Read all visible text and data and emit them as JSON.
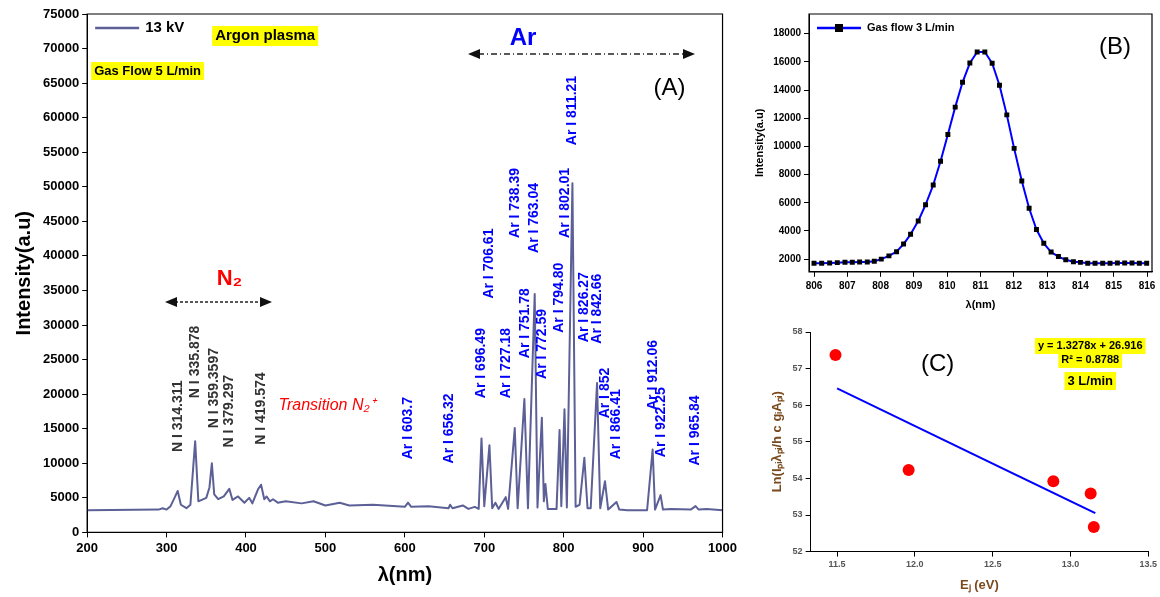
{
  "chart_data": [
    {
      "type": "line",
      "xlabel": "λ(nm)",
      "ylabel": "Intensity(a.u)",
      "xlim": [
        200,
        1000
      ],
      "ylim": [
        0,
        75000
      ],
      "xticks": [
        200,
        300,
        400,
        500,
        600,
        700,
        800,
        900,
        1000
      ],
      "yticks": [
        0,
        5000,
        10000,
        15000,
        20000,
        25000,
        30000,
        35000,
        40000,
        45000,
        50000,
        55000,
        60000,
        65000,
        70000,
        75000
      ],
      "legend": "top left",
      "marker": "none",
      "series": [
        {
          "name": "13 kV",
          "color": "#5c6096",
          "x": [
            200,
            290,
            295,
            300,
            305,
            310,
            314,
            318,
            325,
            330,
            336,
            340,
            350,
            354,
            357,
            360,
            365,
            372,
            379,
            383,
            390,
            398,
            404,
            408,
            415,
            419,
            423,
            426,
            430,
            434,
            440,
            450,
            470,
            485,
            500,
            518,
            530,
            560,
            590,
            600,
            604,
            608,
            630,
            655,
            657,
            660,
            673,
            680,
            688,
            693,
            696.5,
            700,
            706.5,
            710,
            714,
            718,
            727,
            730,
            738.4,
            742,
            750.5,
            755,
            763.5,
            767,
            772.5,
            775,
            777,
            780,
            791,
            794.8,
            797,
            801,
            804,
            811,
            815,
            820,
            826,
            830,
            834,
            842,
            846,
            852,
            856,
            866.5,
            870,
            880,
            905,
            912,
            915,
            922,
            925,
            935,
            960,
            966,
            970,
            980,
            1000
          ],
          "values": [
            3200,
            3300,
            3500,
            3300,
            3800,
            5000,
            6000,
            4000,
            3500,
            4000,
            13200,
            4500,
            5000,
            6500,
            10000,
            5500,
            4800,
            5200,
            6300,
            4700,
            5200,
            4300,
            5000,
            4200,
            6200,
            6900,
            4800,
            5200,
            4500,
            4800,
            4300,
            4500,
            4200,
            4500,
            3900,
            4300,
            3900,
            4000,
            3800,
            3700,
            4300,
            3700,
            3800,
            3500,
            4000,
            3500,
            3900,
            3400,
            3700,
            3400,
            13600,
            3800,
            12600,
            3500,
            4300,
            3400,
            5100,
            3400,
            15100,
            3500,
            19300,
            3500,
            34500,
            3600,
            16600,
            4500,
            7000,
            3400,
            3400,
            14800,
            3800,
            17800,
            3600,
            50500,
            3700,
            4000,
            10800,
            3500,
            3500,
            21600,
            3500,
            7400,
            3300,
            4400,
            3300,
            3200,
            3200,
            12000,
            3300,
            5400,
            3300,
            3400,
            3300,
            3800,
            3300,
            3400,
            3200
          ]
        }
      ],
      "annotations": [
        "Argon plasma",
        "Gas Flow 5 L/min",
        "(A)",
        "N₂",
        "Ar",
        "Transition N₂⁺",
        "N I 314.311",
        "N I 335.878",
        "N I 359.3597",
        "N I 379.297",
        "N I 419.574",
        "Ar I 603.7",
        "Ar I 656.32",
        "Ar I 696.49",
        "Ar I 706.61",
        "Ar I 727.18",
        "Ar I 738.39",
        "Ar I 751.78",
        "Ar I 763.04",
        "Ar I 772.59",
        "Ar I 794.80",
        "Ar I 802.01",
        "Ar I 811.21",
        "Ar I 826.27",
        "Ar I 842.66",
        "Ar I 852",
        "Ar I 866.41",
        "Ar I 912.06",
        "Ar I 922.25",
        "Ar I 965.84"
      ]
    },
    {
      "type": "line",
      "xlabel": "λ(nm)",
      "ylabel": "Intensity(a.u)",
      "xlim": [
        805.85,
        816.15
      ],
      "ylim": [
        1100,
        19400
      ],
      "xticks": [
        806,
        807,
        808,
        809,
        810,
        811,
        812,
        813,
        814,
        815,
        816
      ],
      "yticks": [
        2000,
        4000,
        6000,
        8000,
        10000,
        12000,
        14000,
        16000,
        18000
      ],
      "legend": "top left",
      "marker": "square",
      "series": [
        {
          "name": "Gas flow 3 L/min",
          "color": "#0000ff",
          "x": [
            806.0,
            806.23,
            806.47,
            806.7,
            806.93,
            807.15,
            807.37,
            807.6,
            807.81,
            808.02,
            808.25,
            808.48,
            808.69,
            808.9,
            809.13,
            809.35,
            809.58,
            809.8,
            810.02,
            810.24,
            810.46,
            810.68,
            810.9,
            811.13,
            811.35,
            811.57,
            811.79,
            812.01,
            812.24,
            812.46,
            812.68,
            812.9,
            813.12,
            813.34,
            813.56,
            813.79,
            814.0,
            814.22,
            814.44,
            814.67,
            814.89,
            815.11,
            815.33,
            815.55,
            815.77,
            815.99
          ],
          "values": [
            1700,
            1700,
            1720,
            1750,
            1780,
            1780,
            1790,
            1800,
            1850,
            2000,
            2230,
            2530,
            3070,
            3760,
            4700,
            5860,
            7260,
            8950,
            10850,
            12790,
            14550,
            15920,
            16700,
            16700,
            15900,
            14340,
            12240,
            9860,
            7550,
            5610,
            4100,
            3120,
            2500,
            2180,
            1950,
            1820,
            1770,
            1700,
            1700,
            1700,
            1700,
            1720,
            1720,
            1720,
            1700,
            1700
          ]
        }
      ],
      "annotations": [
        "(B)"
      ]
    },
    {
      "type": "scatter",
      "xlabel": "Eⱼ (eV)",
      "ylabel": "Ln(Iₚᵢλₚᵢ/h c gᵢAₚᵢ)",
      "xlim": [
        11.33,
        13.5
      ],
      "ylim": [
        52,
        58
      ],
      "xticks": [
        11.5,
        {
          "value": 12,
          "label": "12.0"
        },
        12.5,
        {
          "value": 13,
          "label": "13.0"
        },
        13.5
      ],
      "yticks": [
        52,
        53,
        54,
        55,
        56,
        57,
        58
      ],
      "series": [
        {
          "color": "#ff0000",
          "x": [
            11.49,
            11.96,
            12.89,
            13.13,
            13.15
          ],
          "values": [
            57.37,
            54.23,
            53.92,
            53.59,
            52.67
          ]
        },
        {
          "type": "line",
          "color": "#0000ff",
          "x": [
            11.5,
            13.16
          ],
          "values": [
            56.46,
            53.05
          ]
        }
      ],
      "annotations": [
        "y = 1.3278x + 26.916",
        "R² = 0.8788",
        "3 L/min",
        "(C)"
      ]
    }
  ]
}
